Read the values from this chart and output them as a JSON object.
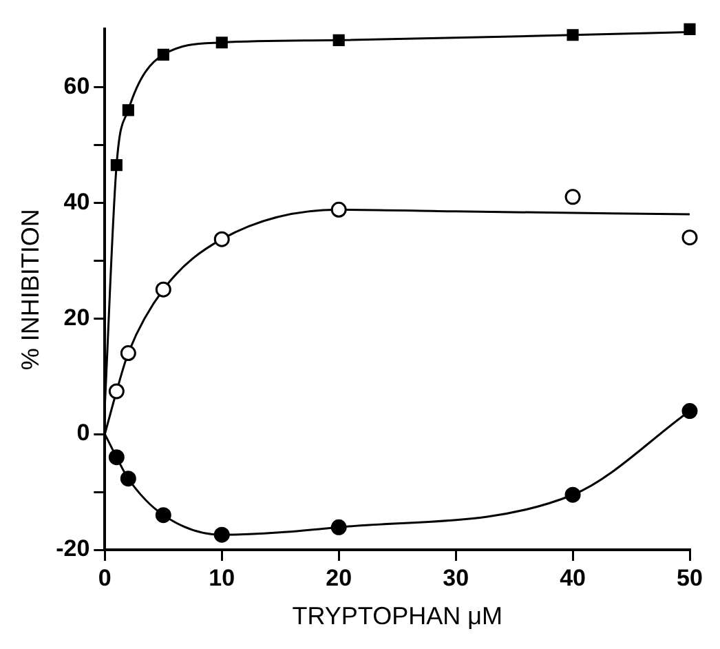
{
  "chart_data": {
    "type": "scatter",
    "xlabel": "TRYPTOPHAN μM",
    "ylabel": "% INHIBITION",
    "xlim": [
      0,
      50
    ],
    "xticks": [
      0,
      10,
      20,
      30,
      40,
      50
    ],
    "ylim": [
      -20,
      70
    ],
    "yticks": [
      -20,
      {
        "value": -10,
        "label": null
      },
      0,
      20,
      {
        "value": 30,
        "label": null
      },
      40,
      {
        "value": 50,
        "label": null
      },
      60
    ],
    "grid": false,
    "legend": false,
    "series": [
      {
        "type": "scatter",
        "marker": "square",
        "color": "#000000",
        "x": [
          1,
          2,
          5,
          10,
          20,
          40,
          50
        ],
        "values": [
          46.5,
          56,
          65.6,
          67.7,
          68.1,
          69,
          70
        ]
      },
      {
        "type": "scatter",
        "marker": "circle",
        "color": "#ffffff",
        "x": [
          1,
          2,
          5,
          10,
          20,
          40,
          50
        ],
        "values": [
          7.4,
          14,
          25,
          33.7,
          38.8,
          41,
          34
        ]
      },
      {
        "type": "scatter",
        "marker": "circle",
        "color": "#000000",
        "x": [
          1,
          2,
          5,
          10,
          20,
          40,
          50
        ],
        "values": [
          -4,
          -7.7,
          -14,
          -17.4,
          -16.1,
          -10.5,
          4
        ]
      },
      {
        "type": "line",
        "marker": "none",
        "color": "#000000",
        "x": [
          0,
          1,
          2,
          5,
          10,
          20,
          40,
          50
        ],
        "values": [
          5,
          46.5,
          56,
          65.6,
          67.7,
          68.1,
          69,
          69.5
        ]
      },
      {
        "type": "line",
        "marker": "none",
        "color": "#000000",
        "x": [
          0,
          1,
          2,
          5,
          10,
          20,
          30,
          50
        ],
        "values": [
          0,
          7.4,
          14,
          25,
          33.7,
          38.8,
          38.5,
          38
        ]
      },
      {
        "type": "line",
        "marker": "none",
        "color": "#000000",
        "x": [
          0,
          1,
          2,
          5,
          10,
          20,
          40,
          50
        ],
        "values": [
          0,
          -4,
          -7.7,
          -14,
          -17.4,
          -16.1,
          -10.5,
          4
        ]
      }
    ]
  }
}
